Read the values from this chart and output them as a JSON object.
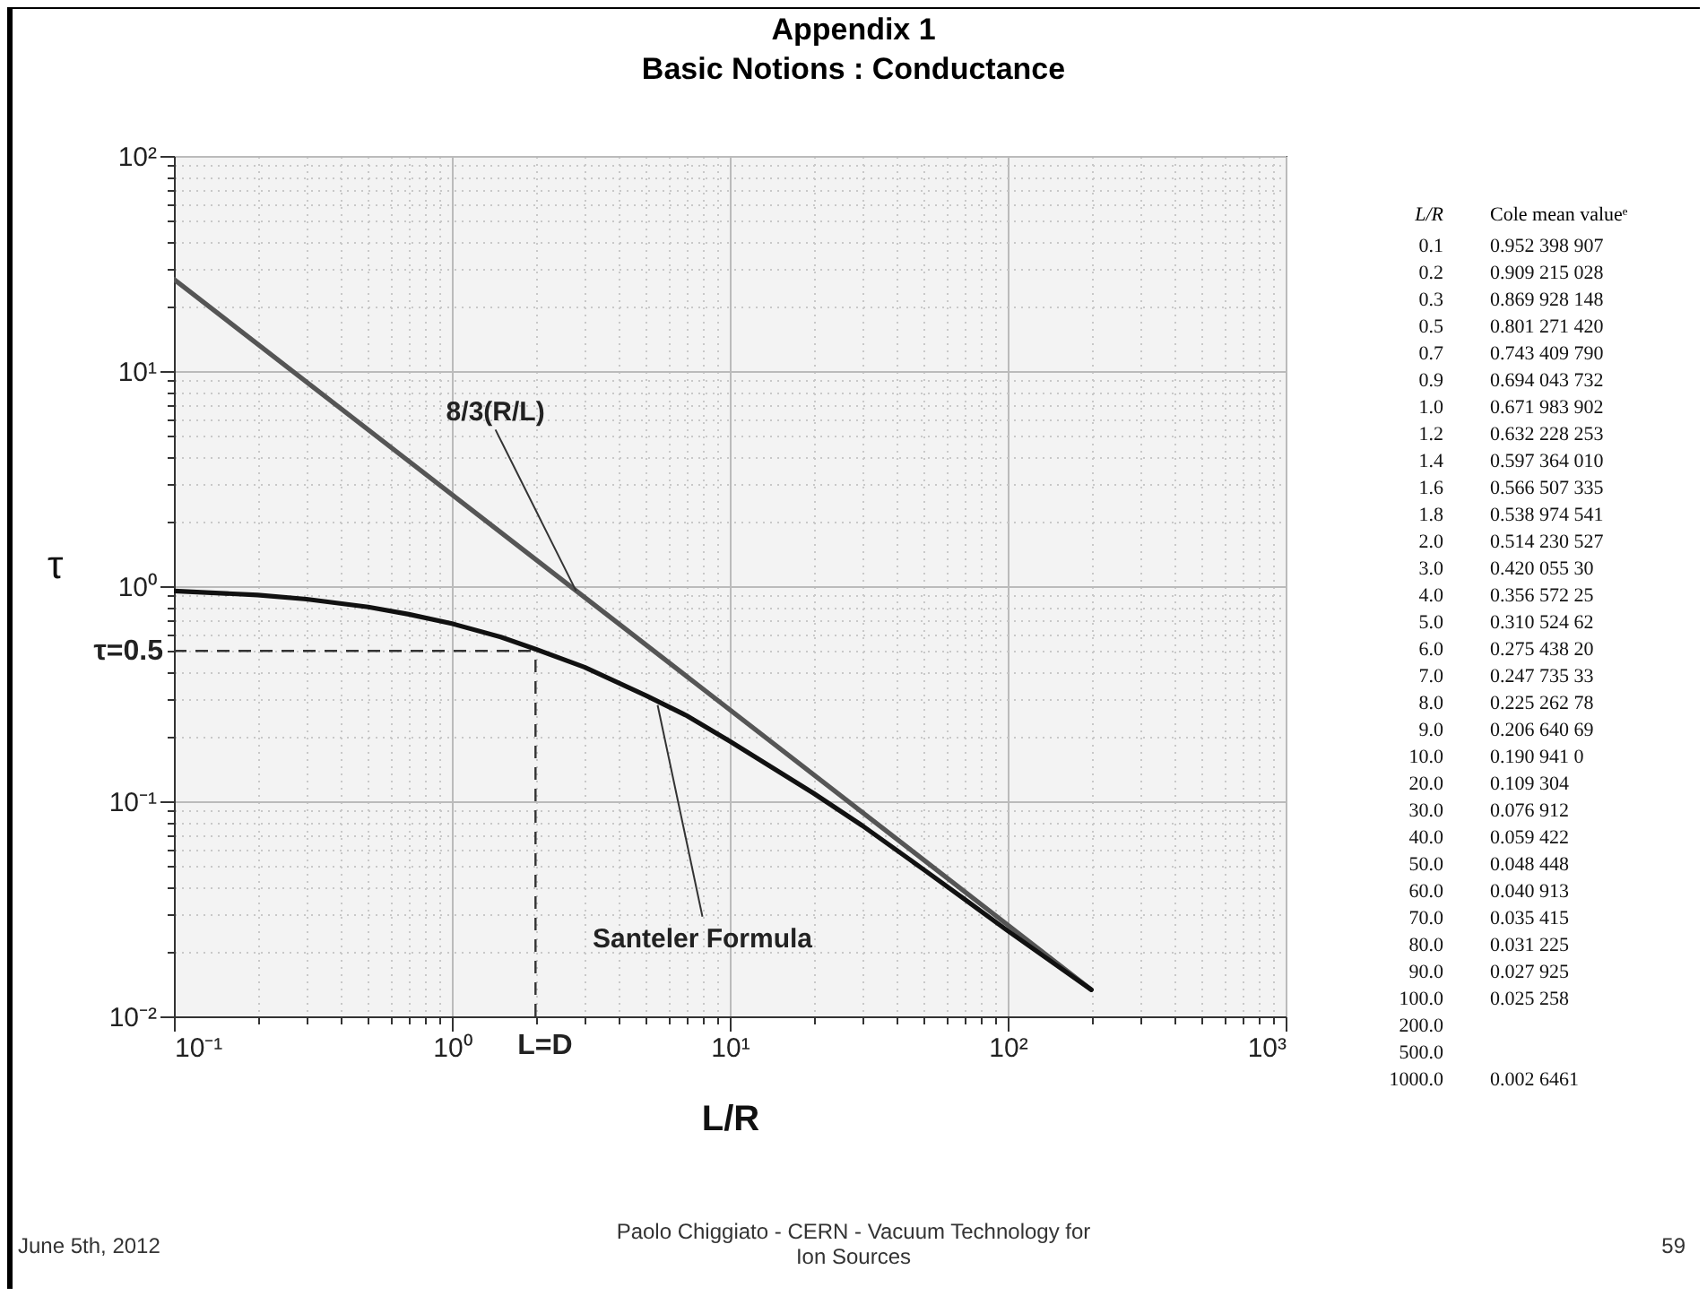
{
  "chart_data": [
    {
      "type": "line",
      "title": "Appendix 1",
      "subtitle": "Basic Notions : Conductance",
      "xlabel": "L/R",
      "ylabel": "τ",
      "log": "xy",
      "grid": true,
      "xlim": [
        0.1,
        1000
      ],
      "ylim": [
        0.01,
        100
      ],
      "xticks": [
        {
          "value": 0.1,
          "label": "10⁻¹"
        },
        {
          "value": 1,
          "label": "10⁰"
        },
        {
          "value": 10,
          "label": "10¹"
        },
        {
          "value": 100,
          "label": "10²"
        },
        {
          "value": 1000,
          "label": "10³"
        }
      ],
      "yticks": [
        {
          "value": 0.01,
          "label": "10⁻²"
        },
        {
          "value": 0.1,
          "label": "10⁻¹"
        },
        {
          "value": 1,
          "label": "10⁰"
        },
        {
          "value": 10,
          "label": "10¹"
        },
        {
          "value": 100,
          "label": "10²"
        }
      ],
      "series": [
        {
          "color": "#555555",
          "x": [
            0.1,
            200
          ],
          "values": [
            26.7,
            0.0133
          ]
        },
        {
          "color": "#111111",
          "x": [
            0.1,
            0.2,
            0.3,
            0.5,
            0.7,
            1,
            1.5,
            2,
            3,
            5,
            7,
            10,
            20,
            30,
            50,
            70,
            100,
            200
          ],
          "values": [
            0.95,
            0.91,
            0.87,
            0.8,
            0.74,
            0.67,
            0.58,
            0.51,
            0.42,
            0.31,
            0.25,
            0.19,
            0.109,
            0.077,
            0.048,
            0.035,
            0.025,
            0.0133
          ]
        }
      ],
      "ref_lines": [
        {
          "axis": "y",
          "value": 0.5,
          "label": "τ=0.5",
          "line_style": "dashed"
        },
        {
          "axis": "x",
          "value": 2,
          "label": "L=D",
          "line_style": "dashed"
        }
      ],
      "annotations": [
        {
          "text": "8/3(R/L)",
          "x": 2.8,
          "y": 0.95
        },
        {
          "text": "Santeler Formula",
          "x": 5.5,
          "y": 0.28
        },
        "June 5th, 2012",
        "Paolo Chiggiato - CERN - Vacuum Technology for Ion Sources",
        "59"
      ]
    },
    {
      "type": "other",
      "xlabel": "L/R",
      "ylabel": "Cole mean valueᵉ",
      "categories": [
        "0.1",
        "0.2",
        "0.3",
        "0.5",
        "0.7",
        "0.9",
        "1.0",
        "1.2",
        "1.4",
        "1.6",
        "1.8",
        "2.0",
        "3.0",
        "4.0",
        "5.0",
        "6.0",
        "7.0",
        "8.0",
        "9.0",
        "10.0",
        "20.0",
        "30.0",
        "40.0",
        "50.0",
        "60.0",
        "70.0",
        "80.0",
        "90.0",
        "100.0",
        "200.0",
        "500.0",
        "1000.0"
      ],
      "value_labels": [
        "0.952 398 907",
        "0.909 215 028",
        "0.869 928 148",
        "0.801 271 420",
        "0.743 409 790",
        "0.694 043 732",
        "0.671 983 902",
        "0.632 228 253",
        "0.597 364 010",
        "0.566 507 335",
        "0.538 974 541",
        "0.514 230 527",
        "0.420 055 30",
        "0.356 572 25",
        "0.310 524 62",
        "0.275 438 20",
        "0.247 735 33",
        "0.225 262 78",
        "0.206 640 69",
        "0.190 941 0",
        "0.109 304",
        "0.076 912",
        "0.059 422",
        "0.048 448",
        "0.040 913",
        "0.035 415",
        "0.031 225",
        "0.027 925",
        "0.025 258",
        null,
        null,
        "0.002 6461"
      ]
    }
  ]
}
